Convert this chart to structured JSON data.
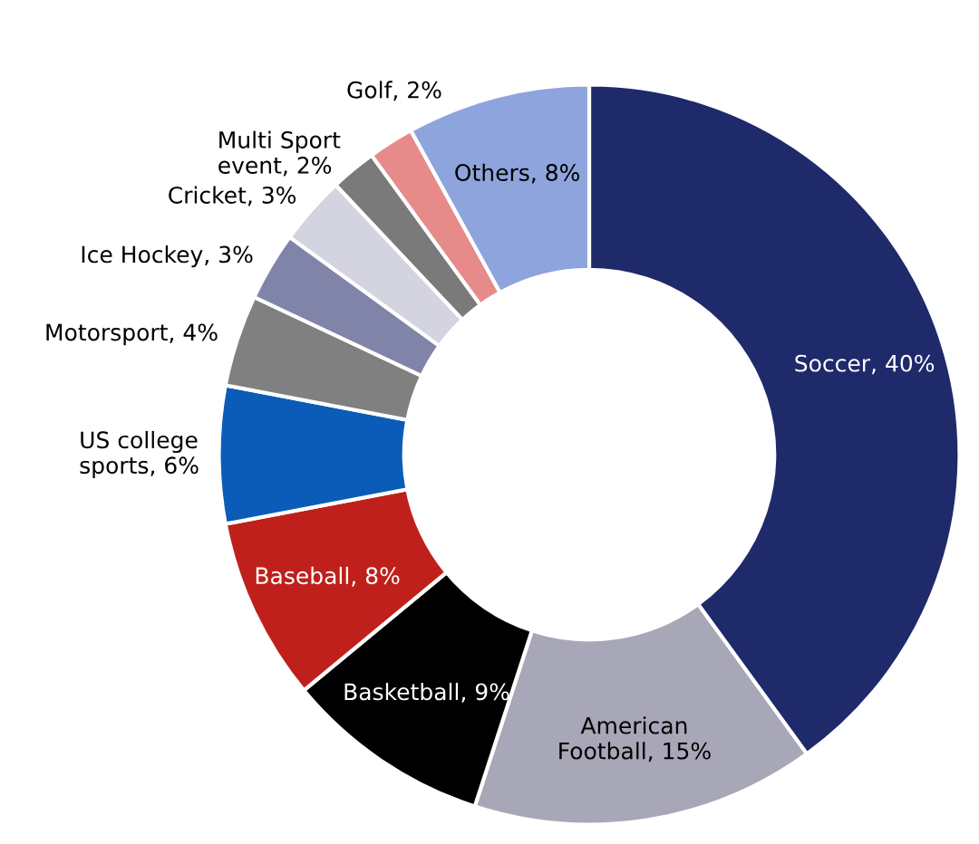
{
  "chart_data": {
    "type": "donut",
    "categories": [
      "Soccer",
      "American\nFootball",
      "Basketball",
      "Baseball",
      "US college\nsports",
      "Motorsport",
      "Ice Hockey",
      "Cricket",
      "Multi Sport\nevent",
      "Golf",
      "Others"
    ],
    "values": [
      40,
      15,
      9,
      8,
      6,
      4,
      3,
      3,
      2,
      2,
      8
    ],
    "value_labels": [
      "40%",
      "15%",
      "9%",
      "8%",
      "6%",
      "4%",
      "3%",
      "3%",
      "2%",
      "2%",
      "8%"
    ],
    "colors": [
      "#1f2a6b",
      "#a7a7b8",
      "#000000",
      "#c0201c",
      "#0a5cb8",
      "#808080",
      "#8084a8",
      "#d4d4e0",
      "#7a7a7a",
      "#e68a8a",
      "#8ea4dc"
    ]
  }
}
